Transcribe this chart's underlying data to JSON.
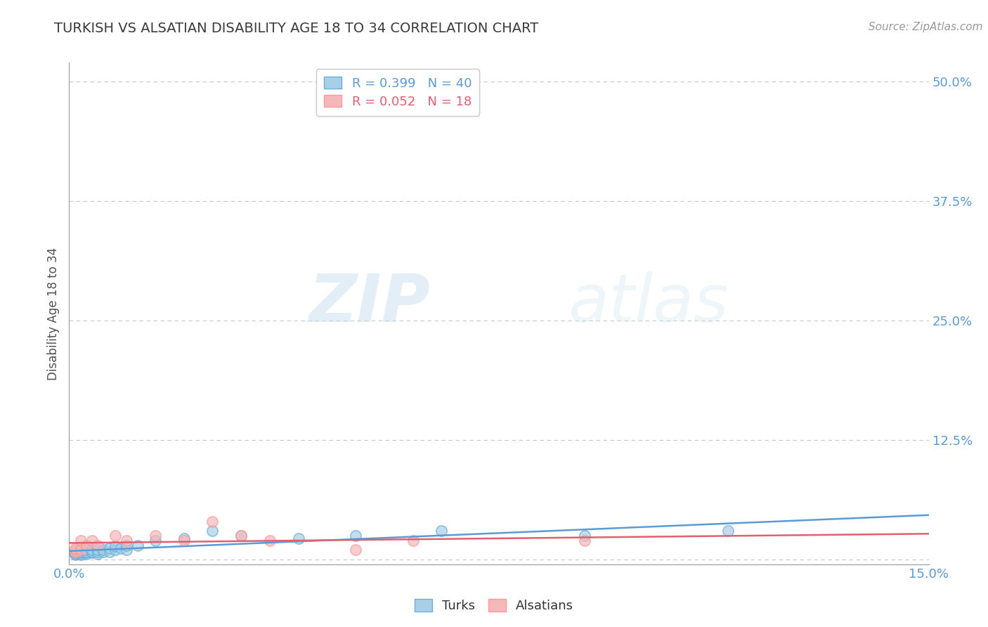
{
  "title": "TURKISH VS ALSATIAN DISABILITY AGE 18 TO 34 CORRELATION CHART",
  "source": "Source: ZipAtlas.com",
  "ylabel": "Disability Age 18 to 34",
  "xlim": [
    0.0,
    0.15
  ],
  "ylim": [
    -0.005,
    0.52
  ],
  "xticks": [
    0.0,
    0.025,
    0.05,
    0.075,
    0.1,
    0.125,
    0.15
  ],
  "xticklabels": [
    "0.0%",
    "",
    "",
    "",
    "",
    "",
    "15.0%"
  ],
  "yticks": [
    0.0,
    0.125,
    0.25,
    0.375,
    0.5
  ],
  "yticklabels": [
    "",
    "12.5%",
    "25.0%",
    "37.5%",
    "50.0%"
  ],
  "turks_R": 0.399,
  "turks_N": 40,
  "alsatians_R": 0.052,
  "alsatians_N": 18,
  "turks_color": "#a8cfe8",
  "alsatians_color": "#f4b8b8",
  "turks_edge_color": "#6baed6",
  "alsatians_edge_color": "#fb9a99",
  "turks_line_color": "#5b9bd5",
  "alsatians_line_color": "#e06070",
  "background_color": "#ffffff",
  "grid_color": "#c8c8c8",
  "title_color": "#3a3a3a",
  "axis_color": "#999999",
  "tick_color": "#5b9bd5",
  "turks_x": [
    0.001,
    0.001,
    0.001,
    0.001,
    0.001,
    0.001,
    0.002,
    0.002,
    0.002,
    0.002,
    0.002,
    0.003,
    0.003,
    0.003,
    0.003,
    0.004,
    0.004,
    0.004,
    0.005,
    0.005,
    0.005,
    0.006,
    0.006,
    0.007,
    0.007,
    0.008,
    0.008,
    0.009,
    0.01,
    0.01,
    0.012,
    0.015,
    0.02,
    0.025,
    0.03,
    0.04,
    0.05,
    0.065,
    0.09,
    0.115
  ],
  "turks_y": [
    0.005,
    0.006,
    0.007,
    0.008,
    0.008,
    0.009,
    0.005,
    0.006,
    0.007,
    0.008,
    0.01,
    0.006,
    0.007,
    0.008,
    0.01,
    0.007,
    0.008,
    0.01,
    0.006,
    0.008,
    0.01,
    0.008,
    0.01,
    0.008,
    0.012,
    0.01,
    0.014,
    0.012,
    0.01,
    0.015,
    0.015,
    0.02,
    0.022,
    0.03,
    0.025,
    0.022,
    0.025,
    0.03,
    0.025,
    0.03
  ],
  "alsatians_x": [
    0.001,
    0.001,
    0.001,
    0.002,
    0.002,
    0.003,
    0.004,
    0.005,
    0.008,
    0.01,
    0.015,
    0.02,
    0.025,
    0.03,
    0.035,
    0.05,
    0.06,
    0.09
  ],
  "alsatians_y": [
    0.008,
    0.01,
    0.012,
    0.01,
    0.02,
    0.015,
    0.02,
    0.015,
    0.025,
    0.02,
    0.025,
    0.02,
    0.04,
    0.025,
    0.02,
    0.01,
    0.02,
    0.02
  ],
  "watermark_zip": "ZIP",
  "watermark_atlas": "atlas"
}
